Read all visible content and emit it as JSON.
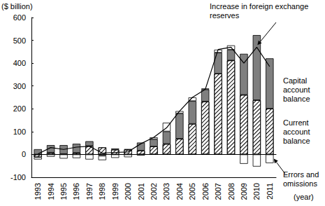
{
  "chart_data": {
    "type": "bar",
    "y_label": "($ billion)",
    "x_label": "(year)",
    "categories": [
      "1993",
      "1994",
      "1995",
      "1996",
      "1997",
      "1998",
      "1999",
      "2000",
      "2001",
      "2002",
      "2003",
      "2004",
      "2005",
      "2006",
      "2007",
      "2008",
      "2009",
      "2010",
      "2011"
    ],
    "stacked": true,
    "grid": false,
    "ylim": [
      -100,
      600
    ],
    "yticks": [
      -100,
      0,
      100,
      200,
      300,
      400,
      500,
      600
    ],
    "series": [
      {
        "name": "Current account balance",
        "type": "bar",
        "color": "#000000",
        "values": [
          -12,
          8,
          2,
          7,
          37,
          31,
          21,
          21,
          17,
          35,
          46,
          69,
          134,
          232,
          354,
          412,
          261,
          238,
          201
        ]
      },
      {
        "name": "Capital account balance",
        "type": "bar",
        "color": "#7f7f7f",
        "values": [
          23,
          33,
          39,
          40,
          21,
          -6,
          5,
          2,
          35,
          32,
          55,
          111,
          100,
          53,
          92,
          47,
          180,
          285,
          220
        ]
      },
      {
        "name": "Errors and omissions",
        "type": "bar",
        "color": "#ffffff",
        "values": [
          -10,
          -10,
          -18,
          -16,
          -22,
          -19,
          -15,
          -12,
          -5,
          8,
          38,
          10,
          16,
          4,
          13,
          19,
          -41,
          -53,
          -38
        ]
      },
      {
        "name": "Increase in foreign exchange reserves",
        "type": "line",
        "color": "#000000",
        "marker": "none",
        "values": [
          2,
          30,
          22,
          32,
          36,
          6,
          9,
          11,
          47,
          75,
          117,
          190,
          250,
          285,
          460,
          470,
          400,
          470,
          385
        ]
      }
    ]
  }
}
